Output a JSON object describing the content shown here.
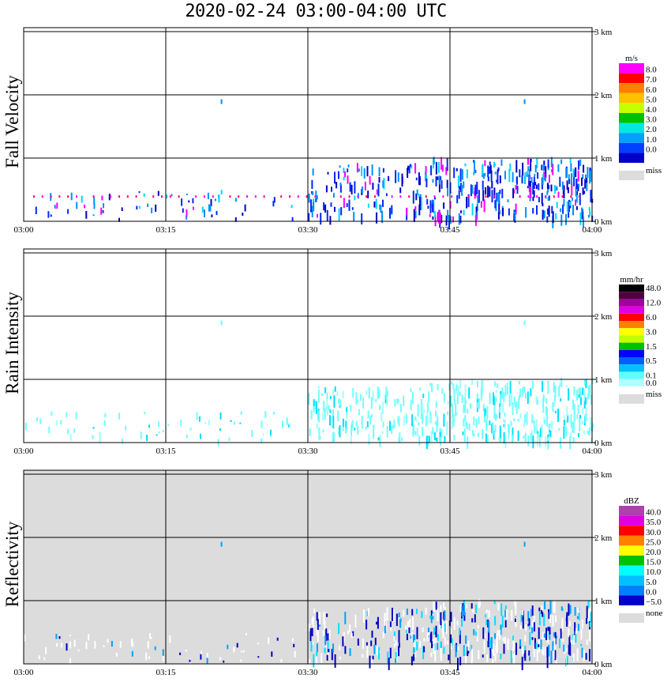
{
  "title": "2020-02-24   03:00-04:00 UTC",
  "time_ticks": [
    "03:00",
    "03:15",
    "03:30",
    "03:45",
    "04:00"
  ],
  "height_ticks": [
    "0 km",
    "1 km",
    "2 km",
    "3 km"
  ],
  "chart_data": [
    {
      "type": "heatmap",
      "ylabel": "Fall Velocity",
      "unit": "m/s",
      "xlim": [
        "03:00",
        "04:00"
      ],
      "ylim_km": [
        0,
        3
      ],
      "background": "#ffffff",
      "legend": [
        {
          "label": "8.0",
          "color": "#ff00ff"
        },
        {
          "label": "7.0",
          "color": "#ff0000"
        },
        {
          "label": "6.0",
          "color": "#ff8000"
        },
        {
          "label": "5.0",
          "color": "#ffc000"
        },
        {
          "label": "4.0",
          "color": "#c8ff00"
        },
        {
          "label": "3.0",
          "color": "#00c000"
        },
        {
          "label": "2.0",
          "color": "#00e8e0"
        },
        {
          "label": "1.0",
          "color": "#00a0ff"
        },
        {
          "label": "0.0",
          "color": "#0040ff"
        },
        {
          "label": "",
          "color": "#0000c8"
        }
      ],
      "missing_label": "miss",
      "missing_color": "#dcdcdc",
      "fill_colors": [
        "#0028ff",
        "#0000c8",
        "#0090ff",
        "#0028ff",
        "#0000c8",
        "#0090ff",
        "#00d8ff",
        "#ff00ff"
      ]
    },
    {
      "type": "heatmap",
      "ylabel": "Rain Intensity",
      "unit": "mm/hr",
      "xlim": [
        "03:00",
        "04:00"
      ],
      "ylim_km": [
        0,
        3
      ],
      "background": "#ffffff",
      "legend": [
        {
          "label": "48.0",
          "color": "#000000"
        },
        {
          "label": "",
          "color": "#500040"
        },
        {
          "label": "12.0",
          "color": "#a000a0"
        },
        {
          "label": "",
          "color": "#e000e0"
        },
        {
          "label": "6.0",
          "color": "#ff0000"
        },
        {
          "label": "",
          "color": "#ff8000"
        },
        {
          "label": "3.0",
          "color": "#ffff00"
        },
        {
          "label": "",
          "color": "#c0ff00"
        },
        {
          "label": "1.5",
          "color": "#00c000"
        },
        {
          "label": "",
          "color": "#0000ff"
        },
        {
          "label": "0.5",
          "color": "#0060ff"
        },
        {
          "label": "",
          "color": "#00c0ff"
        },
        {
          "label": "0.1",
          "color": "#60ffff"
        },
        {
          "label": "0.0",
          "color": "#b0ffff"
        }
      ],
      "missing_label": "miss",
      "missing_color": "#dcdcdc",
      "fill_colors": [
        "#70ffff",
        "#70ffff",
        "#70ffff",
        "#00e0ff",
        "#70ffff",
        "#a0ffff"
      ]
    },
    {
      "type": "heatmap",
      "ylabel": "Reflectivity",
      "unit": "dBZ",
      "xlim": [
        "03:00",
        "04:00"
      ],
      "ylim_km": [
        0,
        3
      ],
      "background": "#dcdcdc",
      "legend": [
        {
          "label": "40.0",
          "color": "#b040b0"
        },
        {
          "label": "35.0",
          "color": "#e000e0"
        },
        {
          "label": "30.0",
          "color": "#ff0000"
        },
        {
          "label": "25.0",
          "color": "#ff8000"
        },
        {
          "label": "20.0",
          "color": "#ffff00"
        },
        {
          "label": "15.0",
          "color": "#00c000"
        },
        {
          "label": "10.0",
          "color": "#00ffff"
        },
        {
          "label": "5.0",
          "color": "#00c0ff"
        },
        {
          "label": "0.0",
          "color": "#0080ff"
        },
        {
          "label": "−5.0",
          "color": "#0000c8"
        }
      ],
      "missing_label": "none",
      "missing_color": "#dcdcdc",
      "fill_colors": [
        "#0000c8",
        "#0000c8",
        "#00a0ff",
        "#00e0ff",
        "#ffffff",
        "#ffffff",
        "#ffffff"
      ]
    }
  ]
}
